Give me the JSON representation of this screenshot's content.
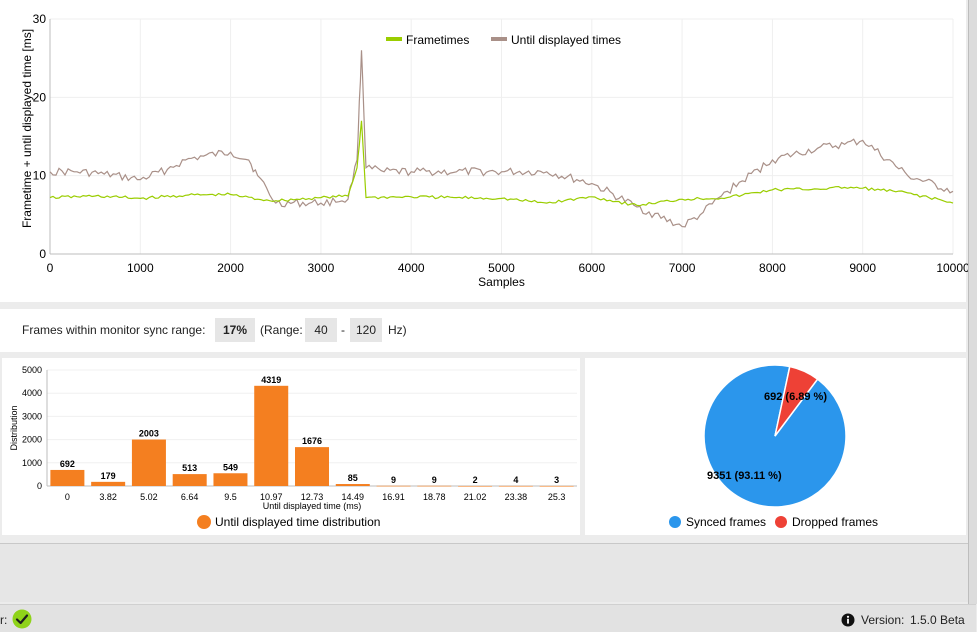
{
  "chart_data": [
    {
      "type": "line",
      "xlabel": "Samples",
      "ylabel": "Frametime + until displayed time [ms]",
      "xlim": [
        0,
        10000
      ],
      "ylim": [
        0,
        30
      ],
      "x_ticks": [
        "0",
        "1000",
        "2000",
        "3000",
        "4000",
        "5000",
        "6000",
        "7000",
        "8000",
        "9000",
        "10000"
      ],
      "y_ticks": [
        "0",
        "10",
        "20",
        "30"
      ],
      "legend_position": "top-center",
      "series": [
        {
          "name": "Frametimes",
          "color": "#9acd00",
          "x": [
            0,
            500,
            1000,
            1500,
            2000,
            2300,
            2500,
            3000,
            3300,
            3400,
            3450,
            3500,
            4000,
            4500,
            5000,
            5500,
            6000,
            6500,
            7000,
            7500,
            8000,
            8500,
            8800,
            9000,
            9500,
            10000
          ],
          "y": [
            7.2,
            7.4,
            7.1,
            7.5,
            7.6,
            7.0,
            6.8,
            7.2,
            7.4,
            11,
            17,
            7.2,
            7.3,
            7.2,
            7.1,
            6.5,
            7.3,
            6.2,
            7.0,
            7.2,
            8.2,
            8.3,
            8.5,
            8.4,
            7.8,
            6.5
          ]
        },
        {
          "name": "Until displayed times",
          "color": "#a99088",
          "x": [
            0,
            300,
            600,
            1000,
            1300,
            1500,
            1700,
            2000,
            2200,
            2300,
            2500,
            3000,
            3300,
            3400,
            3450,
            3500,
            3700,
            4000,
            4500,
            5000,
            5500,
            6000,
            6500,
            7000,
            7200,
            7500,
            8000,
            8500,
            8800,
            9000,
            9500,
            10000
          ],
          "y": [
            10.5,
            10.5,
            10.2,
            9.5,
            10.8,
            12,
            12.5,
            13,
            12,
            10,
            6.5,
            6.5,
            7,
            12,
            26,
            11,
            10.5,
            10.5,
            10.5,
            10.5,
            10.5,
            9,
            6,
            3.5,
            5,
            8,
            12,
            13.5,
            14,
            14.5,
            10,
            8
          ]
        }
      ]
    },
    {
      "type": "bar",
      "xlabel": "Until displayed time (ms)",
      "ylabel": "Distribution",
      "ylim": [
        0,
        5000
      ],
      "y_ticks": [
        "0",
        "1000",
        "2000",
        "3000",
        "4000",
        "5000"
      ],
      "categories": [
        "0",
        "3.82",
        "5.02",
        "6.64",
        "9.5",
        "10.97",
        "12.73",
        "14.49",
        "16.91",
        "18.78",
        "21.02",
        "23.38",
        "25.3"
      ],
      "values": [
        692,
        179,
        2003,
        513,
        549,
        4319,
        1676,
        85,
        9,
        9,
        2,
        4,
        3
      ],
      "legend": "Until displayed time distribution",
      "color": "#f47f20"
    },
    {
      "type": "pie",
      "slices": [
        {
          "name": "Synced frames",
          "value": 9351,
          "percent": 93.11,
          "label": "9351 (93.11 %)",
          "color": "#2b96ec"
        },
        {
          "name": "Dropped frames",
          "value": 692,
          "percent": 6.89,
          "label": "692 (6.89 %)",
          "color": "#ee4136"
        }
      ]
    }
  ],
  "sync": {
    "label": "Frames within monitor sync range:",
    "percent": "17%",
    "range_open": "(Range:",
    "min": "40",
    "dash": "-",
    "max": "120",
    "unit": "Hz)"
  },
  "status": {
    "left_label": "r:",
    "version_label": "Version:",
    "version": "1.5.0 Beta"
  },
  "colors": {
    "check_green": "#8fd31a"
  }
}
